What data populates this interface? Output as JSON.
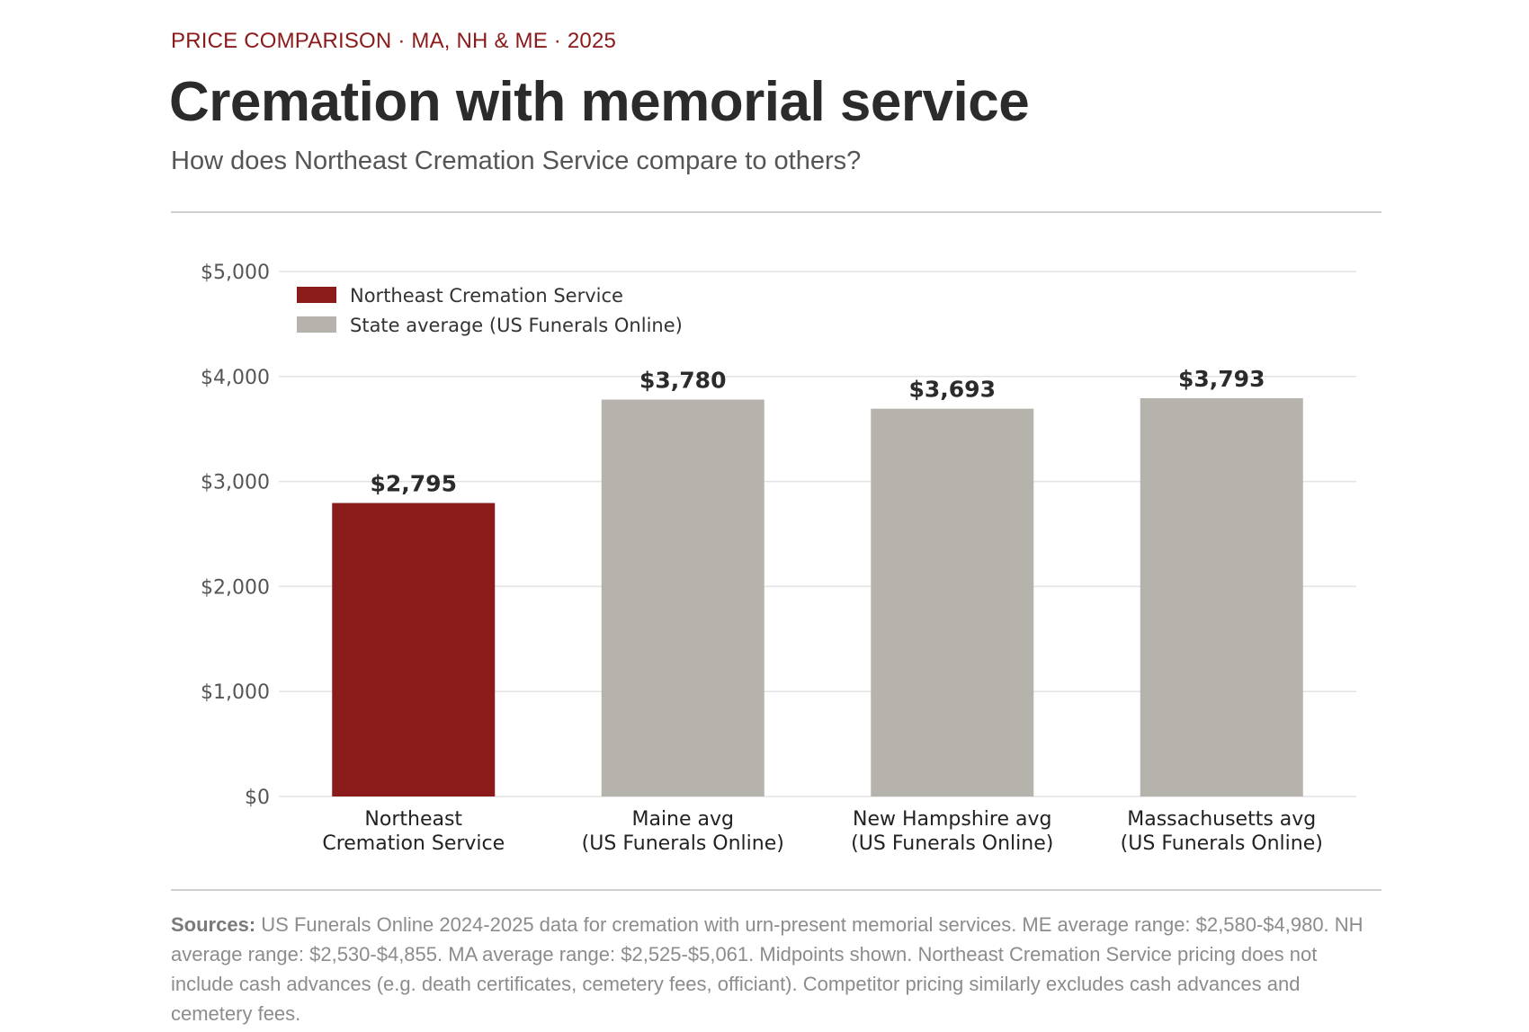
{
  "header": {
    "kicker": "PRICE COMPARISON · MA, NH & ME · 2025",
    "title": "Cremation with memorial service",
    "subtitle": "How does Northeast Cremation Service compare to others?"
  },
  "footer": {
    "sources_label": "Sources:",
    "sources_text": " US Funerals Online 2024-2025 data for cremation with urn-present memorial services. ME average range: $2,580-$4,980. NH average range: $2,530-$4,855. MA average range: $2,525-$5,061. Midpoints shown. Northeast Cremation Service pricing does not include cash advances (e.g. death certificates, cemetery fees, officiant). Competitor pricing similarly excludes cash advances and cemetery fees."
  },
  "colors": {
    "brand": "#8b1a1a",
    "average": "#b5b3ab",
    "grid": "#e3e3e3",
    "text": "#2b2b2b"
  },
  "chart_data": {
    "type": "bar",
    "categories": [
      [
        "Northeast",
        "Cremation Service"
      ],
      [
        "Maine avg",
        "(US Funerals Online)"
      ],
      [
        "New Hampshire avg",
        "(US Funerals Online)"
      ],
      [
        "Massachusetts avg",
        "(US Funerals Online)"
      ]
    ],
    "values": [
      2795,
      3780,
      3693,
      3793
    ],
    "value_labels": [
      "$2,795",
      "$3,780",
      "$3,693",
      "$3,793"
    ],
    "bar_series": [
      "Northeast Cremation Service",
      "State average (US Funerals Online)",
      "State average (US Funerals Online)",
      "State average (US Funerals Online)"
    ],
    "legend": [
      {
        "name": "Northeast Cremation Service",
        "color": "#8b1a1a"
      },
      {
        "name": "State average (US Funerals Online)",
        "color": "#b5b3ab"
      }
    ],
    "legend_position": "top-left",
    "yticks": [
      0,
      1000,
      2000,
      3000,
      4000,
      5000
    ],
    "ytick_labels": [
      "$0",
      "$1,000",
      "$2,000",
      "$3,000",
      "$4,000",
      "$5,000"
    ],
    "ylim": [
      0,
      5000
    ],
    "grid": true
  }
}
